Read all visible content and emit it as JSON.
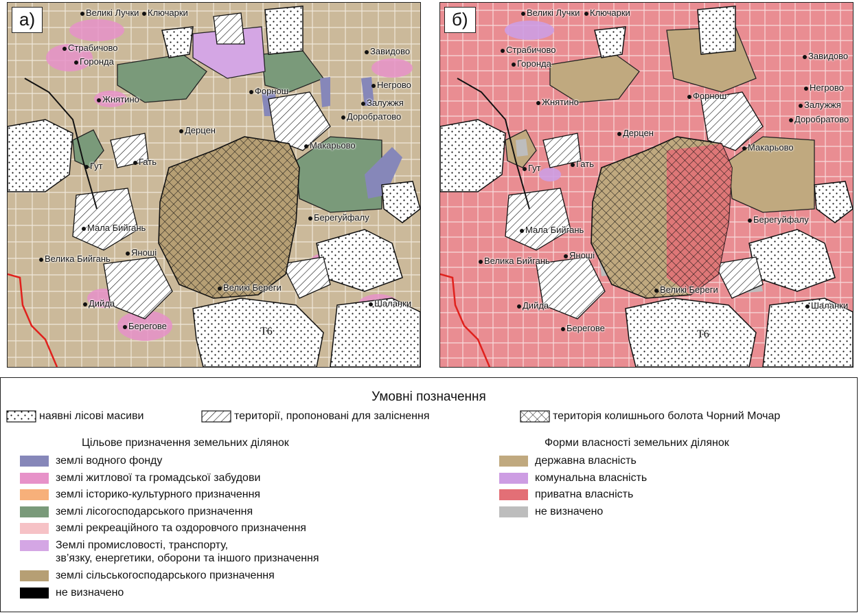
{
  "panels": [
    {
      "label": "а)",
      "variant": "purpose"
    },
    {
      "label": "б)",
      "variant": "ownership"
    }
  ],
  "places": [
    {
      "name": "Великі Лучки",
      "dot": true
    },
    {
      "name": "Ключарки",
      "dot": true
    },
    {
      "name": "Страбичово",
      "dot": true
    },
    {
      "name": "Горонда",
      "dot": true
    },
    {
      "name": "Завидово",
      "dot": true
    },
    {
      "name": "Негрово",
      "dot": true
    },
    {
      "name": "Форнош",
      "dot": true
    },
    {
      "name": "Залужжя",
      "dot": true
    },
    {
      "name": "Жнятино",
      "dot": true
    },
    {
      "name": "Доробратово",
      "dot": true
    },
    {
      "name": "Дерцен",
      "dot": true
    },
    {
      "name": "Макарьово",
      "dot": true
    },
    {
      "name": "Гут",
      "dot": true
    },
    {
      "name": "Гать",
      "dot": true
    },
    {
      "name": "Берегуйфалу",
      "dot": true
    },
    {
      "name": "Мала Бийгань",
      "dot": true
    },
    {
      "name": "Велика Бийгань",
      "dot": true
    },
    {
      "name": "Яноші",
      "dot": true
    },
    {
      "name": "Великі Береги",
      "dot": true
    },
    {
      "name": "Дийда",
      "dot": true
    },
    {
      "name": "Шаланки",
      "dot": true
    },
    {
      "name": "Берегове",
      "dot": true
    }
  ],
  "road_number": "Т6",
  "colors": {
    "water": "#8687b9",
    "residential": "#e792c9",
    "historical": "#f7b07a",
    "forestry": "#7a9a7a",
    "recreation": "#f6c2c6",
    "industry": "#d4a6e4",
    "agricultural": "#b69f74",
    "undefined": "#000000",
    "state": "#c0a97f",
    "communal": "#cd9de3",
    "private": "#e36f76",
    "not_defined": "#bdbdbd",
    "border": "#e0211d"
  },
  "legend": {
    "title": "Умовні позначення",
    "patterns": [
      {
        "icon": "dots-pattern-icon",
        "label": "наявні лісові масиви"
      },
      {
        "icon": "hatch-pattern-icon",
        "label": "території, пропоновані для заліснення"
      },
      {
        "icon": "crosshatch-pattern-icon",
        "label": "територія колишнього болота Чорний Мочар"
      }
    ],
    "purpose": {
      "title": "Цільове призначення земельних ділянок",
      "items": [
        {
          "label": "землі водного фонду",
          "color_key": "water"
        },
        {
          "label": "землі житлової та громадської забудови",
          "color_key": "residential"
        },
        {
          "label": "землі історико-культурного призначення",
          "color_key": "historical"
        },
        {
          "label": "землі лісогосподарського призначення",
          "color_key": "forestry"
        },
        {
          "label": "землі рекреаційного та оздоровчого призначення",
          "color_key": "recreation"
        },
        {
          "label": "Землі промисловості, транспорту,",
          "label2": "зв’язку, енергетики, оборони та іншого призначення",
          "color_key": "industry"
        },
        {
          "label": "землі сільськогосподарського призначення",
          "color_key": "agricultural"
        },
        {
          "label": "не визначено",
          "color_key": "undefined"
        }
      ]
    },
    "ownership": {
      "title": "Форми власності земельних ділянок",
      "items": [
        {
          "label": "державна власність",
          "color_key": "state"
        },
        {
          "label": "комунальна власність",
          "color_key": "communal"
        },
        {
          "label": "приватна власність",
          "color_key": "private"
        },
        {
          "label": "не визначено",
          "color_key": "not_defined"
        }
      ]
    }
  }
}
